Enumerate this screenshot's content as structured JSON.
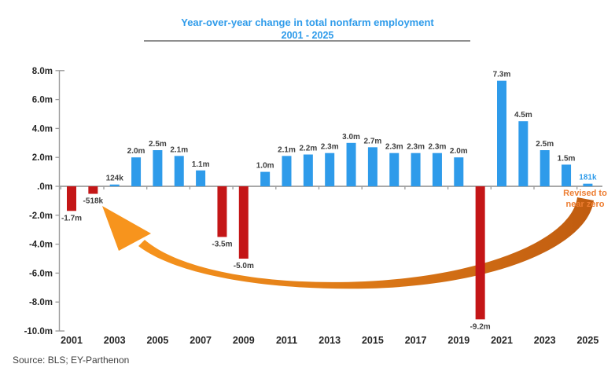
{
  "chart_data": {
    "type": "bar",
    "title": "Year-over-year change in total nonfarm employment",
    "subtitle": "2001 - 2025",
    "source": "Source: BLS; EY-Parthenon",
    "units": "millions of jobs",
    "ylim": [
      -10,
      8
    ],
    "grid": false,
    "legend": "none",
    "y_ticks": [
      {
        "value": 8,
        "label": "8.0m"
      },
      {
        "value": 6,
        "label": "6.0m"
      },
      {
        "value": 4,
        "label": "4.0m"
      },
      {
        "value": 2,
        "label": "2.0m"
      },
      {
        "value": 0,
        "label": ".0m"
      },
      {
        "value": -2,
        "label": "-2.0m"
      },
      {
        "value": -4,
        "label": "-4.0m"
      },
      {
        "value": -6,
        "label": "-6.0m"
      },
      {
        "value": -8,
        "label": "-8.0m"
      },
      {
        "value": -10,
        "label": "-10.0m"
      }
    ],
    "x_tick_labels": [
      "2001",
      "2003",
      "2005",
      "2007",
      "2009",
      "2011",
      "2013",
      "2015",
      "2017",
      "2019",
      "2021",
      "2023",
      "2025"
    ],
    "bars": [
      {
        "year": "2001",
        "value": -1.7,
        "label": "-1.7m"
      },
      {
        "year": "2002",
        "value": -0.518,
        "label": "-518k"
      },
      {
        "year": "2003",
        "value": 0.124,
        "label": "124k"
      },
      {
        "year": "2004",
        "value": 2.0,
        "label": "2.0m"
      },
      {
        "year": "2005",
        "value": 2.5,
        "label": "2.5m"
      },
      {
        "year": "2006",
        "value": 2.1,
        "label": "2.1m"
      },
      {
        "year": "2007",
        "value": 1.1,
        "label": "1.1m"
      },
      {
        "year": "2008",
        "value": -3.5,
        "label": "-3.5m"
      },
      {
        "year": "2009",
        "value": -5.0,
        "label": "-5.0m"
      },
      {
        "year": "2010",
        "value": 1.0,
        "label": "1.0m"
      },
      {
        "year": "2011",
        "value": 2.1,
        "label": "2.1m"
      },
      {
        "year": "2012",
        "value": 2.2,
        "label": "2.2m"
      },
      {
        "year": "2013",
        "value": 2.3,
        "label": "2.3m"
      },
      {
        "year": "2014",
        "value": 3.0,
        "label": "3.0m"
      },
      {
        "year": "2015",
        "value": 2.7,
        "label": "2.7m"
      },
      {
        "year": "2016",
        "value": 2.3,
        "label": "2.3m"
      },
      {
        "year": "2017",
        "value": 2.3,
        "label": "2.3m"
      },
      {
        "year": "2018",
        "value": 2.3,
        "label": "2.3m"
      },
      {
        "year": "2019",
        "value": 2.0,
        "label": "2.0m"
      },
      {
        "year": "2020",
        "value": -9.2,
        "label": "-9.2m"
      },
      {
        "year": "2021",
        "value": 7.3,
        "label": "7.3m"
      },
      {
        "year": "2022",
        "value": 4.5,
        "label": "4.5m"
      },
      {
        "year": "2023",
        "value": 2.5,
        "label": "2.5m"
      },
      {
        "year": "2024",
        "value": 1.5,
        "label": "1.5m"
      },
      {
        "year": "2025",
        "value": 0.181,
        "label": "181k",
        "highlight": true
      }
    ],
    "annotation": {
      "lines": [
        "Revised to",
        "near zero"
      ],
      "points_from_year": "2025",
      "points_to_year": "2001"
    }
  },
  "colors": {
    "positive_bar": "#2E9BEA",
    "negative_bar": "#C41617",
    "title_blue": "#2E9BEA",
    "annotation_orange": "#ED7D31",
    "arrow_bright": "#F7941D",
    "arrow_dark": "#C05C10",
    "axis_gray": "#9B9B9B",
    "tick_text": "#262626",
    "bar_label_text": "#3F3F3F",
    "source_text": "#3F3F3F"
  }
}
